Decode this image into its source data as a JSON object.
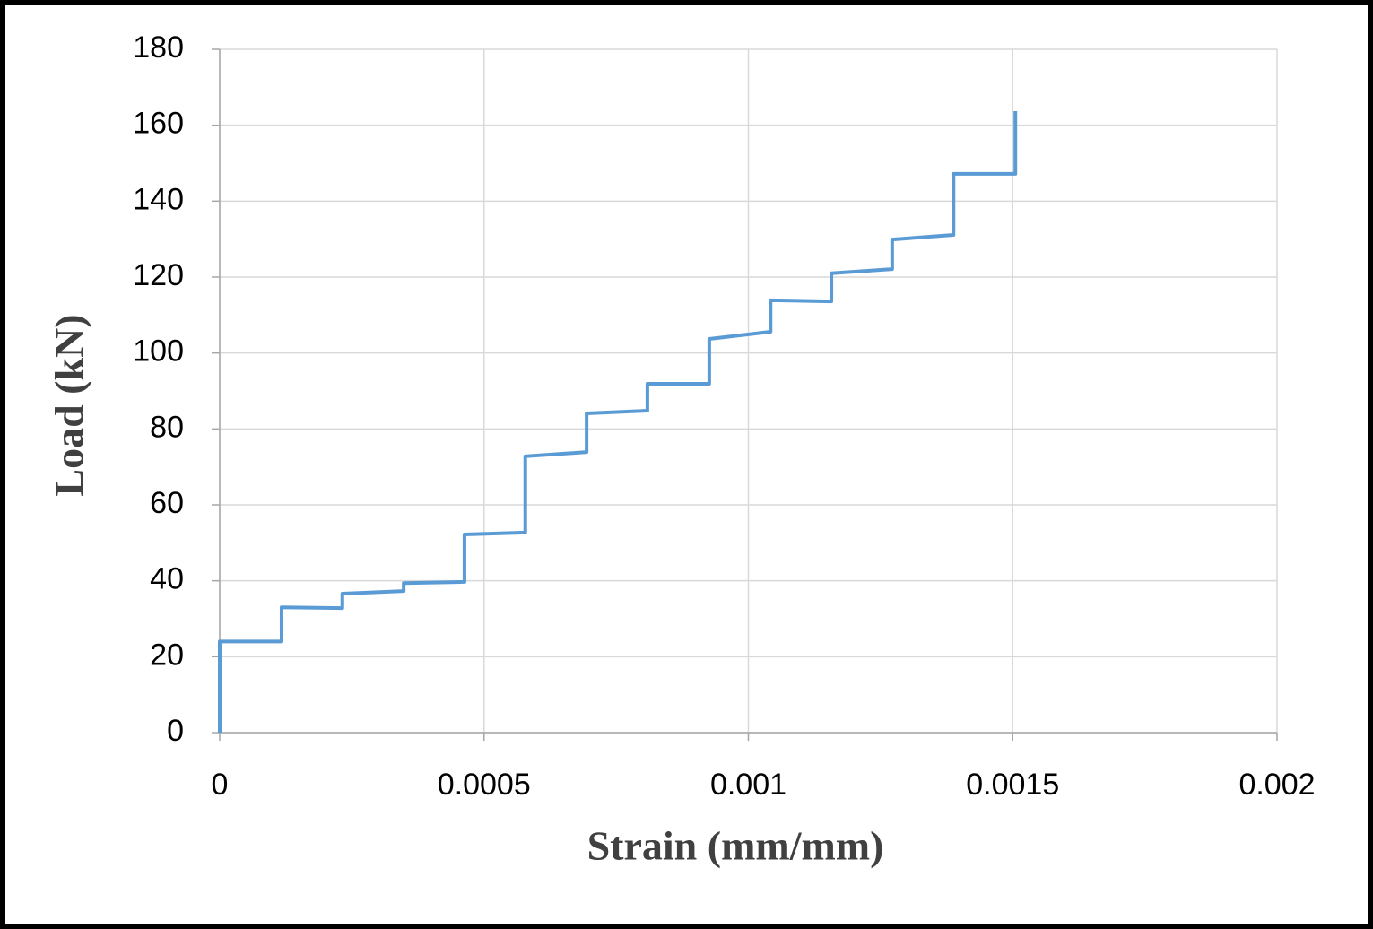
{
  "chart_data": {
    "type": "line",
    "x_label": "Strain (mm/mm)",
    "y_label": "Load (kN)",
    "xlim": [
      0,
      0.002
    ],
    "xticks": [
      0,
      0.0005,
      0.001,
      0.0015,
      0.002
    ],
    "ylim": [
      0,
      180
    ],
    "yticks": [
      0,
      20,
      40,
      60,
      80,
      100,
      120,
      140,
      160,
      180
    ],
    "grid": true,
    "series": [
      {
        "color": "#5b9bd5",
        "x": [
          0,
          0,
          0.000117,
          0.000117,
          0.000232,
          0.000232,
          0.000348,
          0.000348,
          0.000463,
          0.000463,
          0.000578,
          0.000578,
          0.000694,
          0.000694,
          0.000809,
          0.000809,
          0.000926,
          0.000926,
          0.001042,
          0.001042,
          0.001157,
          0.001157,
          0.001272,
          0.001272,
          0.001388,
          0.001388,
          0.001505,
          0.001505
        ],
        "values": [
          0,
          24,
          24,
          33,
          32.8,
          36.6,
          37.3,
          39.4,
          39.7,
          52.2,
          52.7,
          72.8,
          73.9,
          84.1,
          84.8,
          91.9,
          91.9,
          103.7,
          105.6,
          113.9,
          113.6,
          121,
          122.1,
          129.9,
          131.1,
          147.2,
          147.2,
          163.7
        ]
      }
    ]
  }
}
